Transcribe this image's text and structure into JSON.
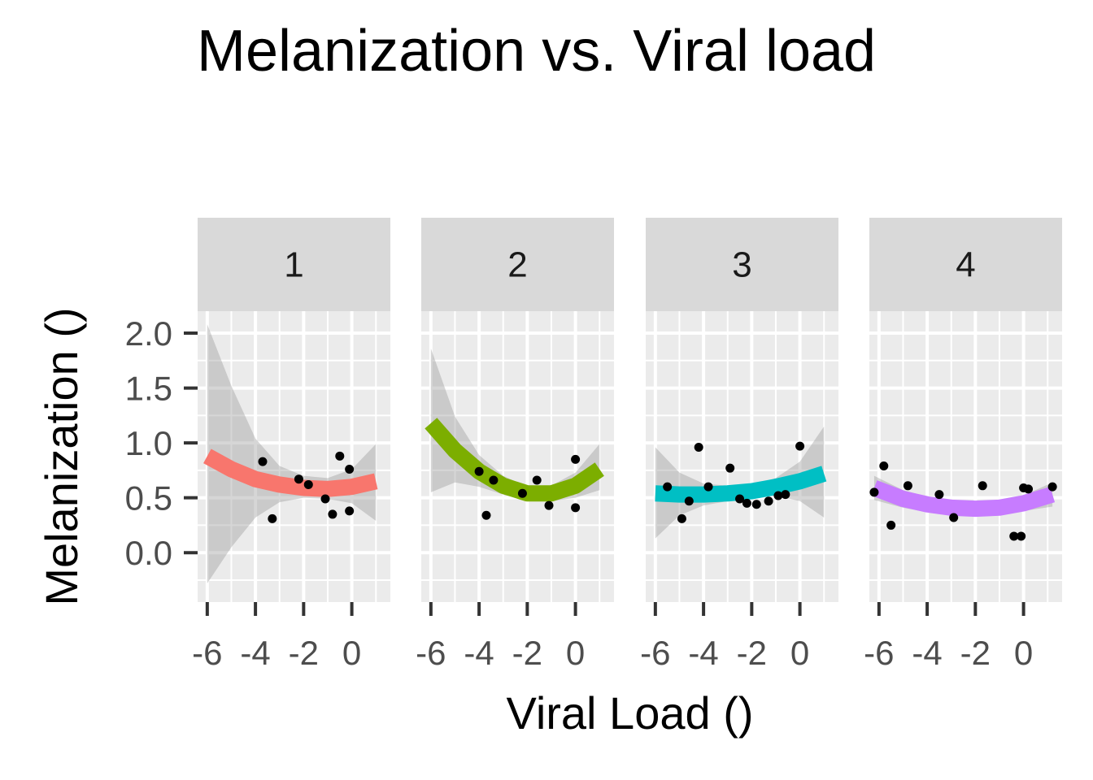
{
  "chart_data": {
    "type": "scatter",
    "title": "Melanization vs. Viral load",
    "xlabel": "Viral Load ()",
    "ylabel": "Melanization ()",
    "xlim": [
      -6.4,
      1.6
    ],
    "ylim": [
      -0.45,
      2.2
    ],
    "xticks": [
      -6,
      -4,
      -2,
      0
    ],
    "yticks": [
      0.0,
      0.5,
      1.0,
      1.5,
      2.0
    ],
    "ytick_labels": [
      "0.0",
      "0.5",
      "1.0",
      "1.5",
      "2.0"
    ],
    "grid": true,
    "facets": [
      {
        "label": "1",
        "color": "#F8766D",
        "points": [
          [
            -3.7,
            0.83
          ],
          [
            -3.3,
            0.31
          ],
          [
            -2.2,
            0.67
          ],
          [
            -1.8,
            0.62
          ],
          [
            -1.1,
            0.49
          ],
          [
            -0.8,
            0.35
          ],
          [
            -0.5,
            0.88
          ],
          [
            -0.1,
            0.76
          ],
          [
            -0.1,
            0.38
          ]
        ],
        "smooth": [
          [
            -6.0,
            0.88
          ],
          [
            -5.0,
            0.76
          ],
          [
            -4.0,
            0.67
          ],
          [
            -3.0,
            0.62
          ],
          [
            -2.0,
            0.59
          ],
          [
            -1.0,
            0.58
          ],
          [
            0.0,
            0.6
          ],
          [
            1.0,
            0.65
          ]
        ],
        "ci_lower": [
          [
            -6.0,
            -0.28
          ],
          [
            -5.0,
            0.05
          ],
          [
            -4.0,
            0.32
          ],
          [
            -3.0,
            0.46
          ],
          [
            -2.0,
            0.5
          ],
          [
            -1.0,
            0.49
          ],
          [
            0.0,
            0.45
          ],
          [
            1.0,
            0.29
          ]
        ],
        "ci_upper": [
          [
            -6.0,
            2.08
          ],
          [
            -5.0,
            1.52
          ],
          [
            -4.0,
            1.04
          ],
          [
            -3.0,
            0.79
          ],
          [
            -2.0,
            0.7
          ],
          [
            -1.0,
            0.68
          ],
          [
            0.0,
            0.76
          ],
          [
            1.0,
            0.99
          ]
        ]
      },
      {
        "label": "2",
        "color": "#7CAE00",
        "points": [
          [
            -4.0,
            0.74
          ],
          [
            -3.7,
            0.34
          ],
          [
            -3.4,
            0.66
          ],
          [
            -1.6,
            0.66
          ],
          [
            -1.1,
            0.43
          ],
          [
            0.0,
            0.85
          ],
          [
            0.0,
            0.41
          ],
          [
            -2.2,
            0.54
          ]
        ],
        "smooth": [
          [
            -6.0,
            1.18
          ],
          [
            -5.0,
            0.93
          ],
          [
            -4.0,
            0.74
          ],
          [
            -3.0,
            0.61
          ],
          [
            -2.0,
            0.54
          ],
          [
            -1.0,
            0.54
          ],
          [
            0.0,
            0.61
          ],
          [
            1.0,
            0.76
          ]
        ],
        "ci_lower": [
          [
            -6.0,
            0.55
          ],
          [
            -5.0,
            0.64
          ],
          [
            -4.0,
            0.6
          ],
          [
            -3.0,
            0.53
          ],
          [
            -2.0,
            0.48
          ],
          [
            -1.0,
            0.47
          ],
          [
            0.0,
            0.5
          ],
          [
            1.0,
            0.57
          ]
        ],
        "ci_upper": [
          [
            -6.0,
            1.86
          ],
          [
            -5.0,
            1.24
          ],
          [
            -4.0,
            0.89
          ],
          [
            -3.0,
            0.7
          ],
          [
            -2.0,
            0.6
          ],
          [
            -1.0,
            0.61
          ],
          [
            0.0,
            0.73
          ],
          [
            1.0,
            0.99
          ]
        ]
      },
      {
        "label": "3",
        "color": "#00BFC4",
        "points": [
          [
            -5.5,
            0.6
          ],
          [
            -4.9,
            0.31
          ],
          [
            -4.6,
            0.47
          ],
          [
            -4.2,
            0.96
          ],
          [
            -3.8,
            0.6
          ],
          [
            -2.9,
            0.77
          ],
          [
            -2.5,
            0.49
          ],
          [
            -2.2,
            0.45
          ],
          [
            -1.8,
            0.44
          ],
          [
            -1.3,
            0.47
          ],
          [
            -0.9,
            0.52
          ],
          [
            -0.6,
            0.53
          ],
          [
            0.0,
            0.97
          ]
        ],
        "smooth": [
          [
            -6.0,
            0.54
          ],
          [
            -5.0,
            0.53
          ],
          [
            -4.0,
            0.53
          ],
          [
            -3.0,
            0.54
          ],
          [
            -2.0,
            0.56
          ],
          [
            -1.0,
            0.6
          ],
          [
            0.0,
            0.65
          ],
          [
            1.0,
            0.72
          ]
        ],
        "ci_lower": [
          [
            -6.0,
            0.13
          ],
          [
            -5.0,
            0.34
          ],
          [
            -4.0,
            0.43
          ],
          [
            -3.0,
            0.47
          ],
          [
            -2.0,
            0.5
          ],
          [
            -1.0,
            0.52
          ],
          [
            0.0,
            0.47
          ],
          [
            1.0,
            0.32
          ]
        ],
        "ci_upper": [
          [
            -6.0,
            0.96
          ],
          [
            -5.0,
            0.73
          ],
          [
            -4.0,
            0.63
          ],
          [
            -3.0,
            0.61
          ],
          [
            -2.0,
            0.62
          ],
          [
            -1.0,
            0.68
          ],
          [
            0.0,
            0.83
          ],
          [
            1.0,
            1.15
          ]
        ]
      },
      {
        "label": "4",
        "color": "#C77CFF",
        "points": [
          [
            -6.2,
            0.55
          ],
          [
            -5.8,
            0.79
          ],
          [
            -5.5,
            0.25
          ],
          [
            -4.8,
            0.61
          ],
          [
            -3.5,
            0.53
          ],
          [
            -2.9,
            0.32
          ],
          [
            -1.7,
            0.61
          ],
          [
            -0.4,
            0.15
          ],
          [
            -0.1,
            0.15
          ],
          [
            0.0,
            0.59
          ],
          [
            0.2,
            0.58
          ],
          [
            1.2,
            0.6
          ]
        ],
        "smooth": [
          [
            -6.2,
            0.59
          ],
          [
            -5.0,
            0.49
          ],
          [
            -4.0,
            0.44
          ],
          [
            -3.0,
            0.41
          ],
          [
            -2.0,
            0.4
          ],
          [
            -1.0,
            0.41
          ],
          [
            0.0,
            0.45
          ],
          [
            1.2,
            0.53
          ]
        ],
        "ci_lower": [
          [
            -6.2,
            0.48
          ],
          [
            -5.0,
            0.41
          ],
          [
            -4.0,
            0.37
          ],
          [
            -3.0,
            0.36
          ],
          [
            -2.0,
            0.35
          ],
          [
            -1.0,
            0.36
          ],
          [
            0.0,
            0.38
          ],
          [
            1.2,
            0.42
          ]
        ],
        "ci_upper": [
          [
            -6.2,
            0.7
          ],
          [
            -5.0,
            0.57
          ],
          [
            -4.0,
            0.51
          ],
          [
            -3.0,
            0.46
          ],
          [
            -2.0,
            0.45
          ],
          [
            -1.0,
            0.46
          ],
          [
            0.0,
            0.52
          ],
          [
            1.2,
            0.64
          ]
        ]
      }
    ]
  },
  "colors": {
    "panel_bg": "#EBEBEB",
    "strip_bg": "#D9D9D9",
    "grid": "#FFFFFF",
    "ribbon": "#999999",
    "point": "#000000",
    "tick_text": "#4D4D4D",
    "tick_mark": "#333333"
  }
}
